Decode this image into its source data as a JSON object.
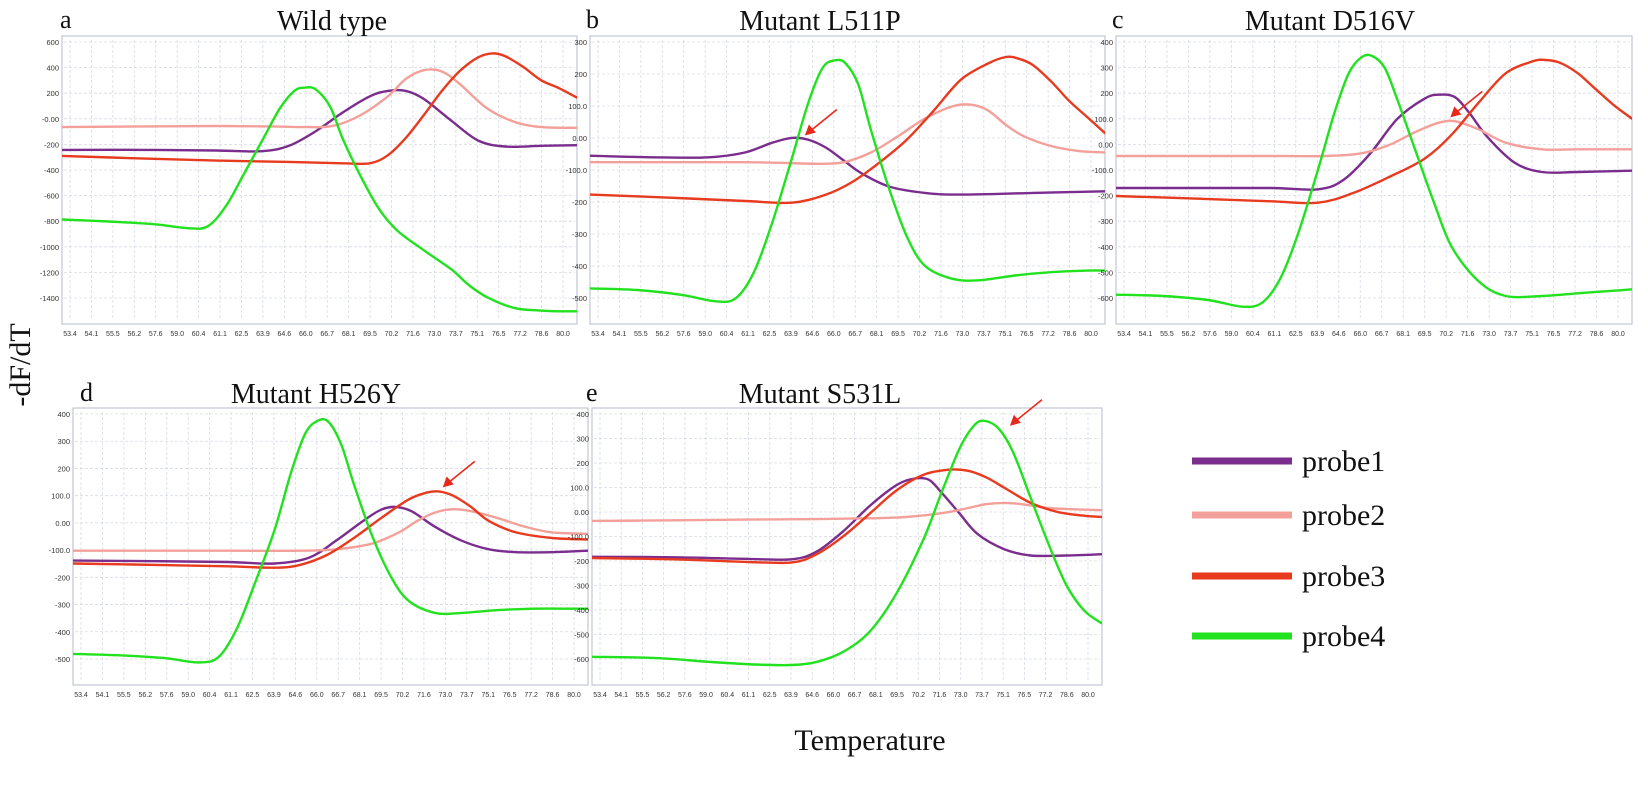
{
  "figure": {
    "y_axis_label": "-dF/dT",
    "x_axis_label": "Temperature",
    "legend": [
      {
        "name": "probe1",
        "color": "#7b2d8e"
      },
      {
        "name": "probe2",
        "color": "#f4a09a"
      },
      {
        "name": "probe3",
        "color": "#e83a1e"
      },
      {
        "name": "probe4",
        "color": "#22e11f"
      }
    ],
    "annotation_color": "#e8281a"
  },
  "chart_data": [
    {
      "type": "line",
      "panel": "a",
      "title": "Wild type",
      "x_ticks": [
        "53.4",
        "54.1",
        "55.5",
        "56.2",
        "57.6",
        "59.0",
        "60.4",
        "61.1",
        "62.5",
        "63.9",
        "64.6",
        "66.0",
        "66.7",
        "68.1",
        "69.5",
        "70.2",
        "71.6",
        "73.0",
        "73.7",
        "75.1",
        "76.5",
        "77.2",
        "78.6",
        "80.0"
      ],
      "y_ticks": [
        "600",
        "400",
        "200",
        "-0.00",
        "-200",
        "-400",
        "-600",
        "-800",
        "-1000",
        "-1200",
        "-1400"
      ],
      "ylim": [
        -1500,
        650
      ],
      "xlim": [
        53.4,
        82.0
      ],
      "arrow": null,
      "series": [
        {
          "name": "probe1",
          "x": [
            53.4,
            58,
            62,
            64.5,
            66,
            67.5,
            69,
            70.5,
            71.5,
            72.5,
            73.5,
            75,
            76.5,
            78,
            80,
            82
          ],
          "y": [
            -200,
            -200,
            -205,
            -210,
            -170,
            -60,
            80,
            200,
            240,
            240,
            180,
            20,
            -130,
            -175,
            -170,
            -165
          ]
        },
        {
          "name": "probe2",
          "x": [
            53.4,
            58,
            62,
            65,
            67,
            68.5,
            70,
            71.5,
            72.5,
            73.5,
            74.5,
            75.5,
            77,
            78.5,
            80,
            82
          ],
          "y": [
            -30,
            -25,
            -22,
            -25,
            -30,
            -20,
            60,
            200,
            330,
            395,
            385,
            290,
            110,
            10,
            -30,
            -35
          ]
        },
        {
          "name": "probe3",
          "x": [
            53.4,
            58,
            62,
            66,
            69,
            70.5,
            71.5,
            72.5,
            73.5,
            74.5,
            75.5,
            76.5,
            77.3,
            78,
            79,
            80,
            81,
            82
          ],
          "y": [
            -245,
            -265,
            -280,
            -290,
            -300,
            -300,
            -240,
            -110,
            60,
            240,
            390,
            490,
            520,
            500,
            420,
            320,
            260,
            190
          ]
        },
        {
          "name": "probe4",
          "x": [
            53.4,
            56,
            58.5,
            60.4,
            61.5,
            62.5,
            63.5,
            64.6,
            65.5,
            66.3,
            66.9,
            67.5,
            68.3,
            69,
            70,
            71,
            72,
            73.5,
            75,
            76,
            77,
            78.5,
            80,
            81,
            82
          ],
          "y": [
            -720,
            -735,
            -755,
            -785,
            -770,
            -620,
            -380,
            -110,
            110,
            240,
            265,
            250,
            120,
            -120,
            -400,
            -640,
            -800,
            -950,
            -1090,
            -1210,
            -1300,
            -1380,
            -1400,
            -1405,
            -1405
          ]
        }
      ]
    },
    {
      "type": "line",
      "panel": "b",
      "title": "Mutant L511P",
      "x_ticks": [
        "53.4",
        "54.1",
        "55.5",
        "56.2",
        "57.6",
        "59.0",
        "60.4",
        "61.1",
        "62.5",
        "63.9",
        "64.6",
        "66.0",
        "66.7",
        "68.1",
        "69.5",
        "70.2",
        "71.6",
        "73.0",
        "73.7",
        "75.1",
        "76.5",
        "77.2",
        "78.6",
        "80.0"
      ],
      "y_ticks": [
        "300",
        "200",
        "100.0",
        "0.00",
        "-100.0",
        "-200",
        "-300",
        "-400",
        "-500"
      ],
      "ylim": [
        -560,
        330
      ],
      "xlim": [
        53.4,
        82.0
      ],
      "arrow": {
        "x": 65.0,
        "y": 10
      },
      "series": [
        {
          "name": "probe1",
          "x": [
            53.4,
            57,
            60,
            62,
            63.5,
            64.6,
            65.5,
            66.5,
            67.5,
            68.5,
            70,
            72,
            74,
            78,
            82
          ],
          "y": [
            -40,
            -45,
            -45,
            -30,
            0,
            15,
            10,
            -15,
            -55,
            -95,
            -135,
            -155,
            -160,
            -155,
            -150
          ]
        },
        {
          "name": "probe2",
          "x": [
            53.4,
            58,
            62,
            64,
            66,
            67.5,
            69,
            70.5,
            72,
            73.5,
            74.5,
            75.5,
            76.5,
            77.5,
            79,
            80.5,
            82
          ],
          "y": [
            -60,
            -60,
            -60,
            -62,
            -65,
            -60,
            -30,
            20,
            75,
            112,
            118,
            100,
            55,
            20,
            -10,
            -25,
            -30
          ]
        },
        {
          "name": "probe3",
          "x": [
            53.4,
            58,
            62,
            64.6,
            66.5,
            68,
            69.5,
            71,
            72.5,
            74,
            75.5,
            76.5,
            77.2,
            78,
            79,
            80,
            81,
            82
          ],
          "y": [
            -160,
            -170,
            -180,
            -185,
            -160,
            -120,
            -60,
            10,
            100,
            195,
            245,
            265,
            260,
            240,
            190,
            130,
            80,
            30
          ]
        },
        {
          "name": "probe4",
          "x": [
            53.4,
            56,
            58.5,
            60.4,
            61.5,
            62.5,
            63.5,
            64.6,
            65.5,
            66.3,
            67,
            67.6,
            68.3,
            69,
            70,
            71,
            72,
            73.5,
            75,
            77,
            79,
            81,
            82
          ],
          "y": [
            -450,
            -455,
            -470,
            -490,
            -480,
            -400,
            -250,
            -50,
            120,
            230,
            255,
            245,
            180,
            40,
            -140,
            -290,
            -380,
            -420,
            -425,
            -410,
            -400,
            -395,
            -395
          ]
        }
      ]
    },
    {
      "type": "line",
      "panel": "c",
      "title": "Mutant D516V",
      "x_ticks": [
        "53.4",
        "54.1",
        "55.5",
        "56.2",
        "57.6",
        "59.0",
        "60.4",
        "61.1",
        "62.5",
        "63.9",
        "64.6",
        "66.0",
        "66.7",
        "68.1",
        "69.5",
        "70.2",
        "71.6",
        "73.0",
        "73.7",
        "75.1",
        "76.5",
        "77.2",
        "78.6",
        "80.0"
      ],
      "y_ticks": [
        "400",
        "300",
        "200",
        "100.0",
        "0.00",
        "-100.0",
        "-200",
        "-300",
        "-400",
        "-500",
        "-600"
      ],
      "ylim": [
        -660,
        420
      ],
      "xlim": [
        53.4,
        82.0
      ],
      "arrow": {
        "x": 71.6,
        "y": 100
      },
      "series": [
        {
          "name": "probe1",
          "x": [
            53.4,
            58,
            62,
            64.6,
            66,
            67.5,
            69,
            70.5,
            71.3,
            72.2,
            73,
            74,
            75.5,
            77,
            79,
            82
          ],
          "y": [
            -150,
            -150,
            -150,
            -155,
            -120,
            -20,
            110,
            185,
            200,
            190,
            130,
            40,
            -55,
            -90,
            -90,
            -85
          ]
        },
        {
          "name": "probe2",
          "x": [
            53.4,
            58,
            62,
            65,
            67,
            68.5,
            70,
            71.3,
            72.2,
            73.5,
            75,
            77,
            79,
            82
          ],
          "y": [
            -30,
            -30,
            -30,
            -30,
            -20,
            10,
            60,
            95,
            100,
            70,
            20,
            -5,
            -5,
            -5
          ]
        },
        {
          "name": "probe3",
          "x": [
            53.4,
            58,
            62,
            64.6,
            66.5,
            68.5,
            70.5,
            72,
            73.5,
            75,
            76.5,
            77.2,
            78,
            79,
            80,
            81,
            82
          ],
          "y": [
            -180,
            -190,
            -200,
            -205,
            -170,
            -110,
            -40,
            50,
            170,
            280,
            325,
            330,
            320,
            280,
            220,
            160,
            110
          ]
        },
        {
          "name": "probe4",
          "x": [
            53.4,
            56,
            58.5,
            60.4,
            61.5,
            62.5,
            63.5,
            64.6,
            65.5,
            66.3,
            67,
            67.6,
            68.3,
            69,
            70,
            71,
            72,
            73.5,
            75,
            77,
            79,
            81,
            82
          ],
          "y": [
            -550,
            -555,
            -570,
            -595,
            -580,
            -490,
            -320,
            -80,
            130,
            280,
            340,
            345,
            300,
            180,
            -10,
            -200,
            -370,
            -500,
            -555,
            -555,
            -545,
            -535,
            -530
          ]
        }
      ]
    },
    {
      "type": "line",
      "panel": "d",
      "title": "Mutant H526Y",
      "x_ticks": [
        "53.4",
        "54.1",
        "55.5",
        "56.2",
        "57.6",
        "59.0",
        "60.4",
        "61.1",
        "62.5",
        "63.9",
        "64.6",
        "66.0",
        "66.7",
        "68.1",
        "69.5",
        "70.2",
        "71.6",
        "73.0",
        "73.7",
        "75.1",
        "76.5",
        "77.2",
        "78.6",
        "80.0"
      ],
      "y_ticks": [
        "400",
        "300",
        "200",
        "100.0",
        "0.00",
        "-100.0",
        "-200",
        "-300",
        "-400",
        "-500"
      ],
      "ylim": [
        -530,
        450
      ],
      "xlim": [
        53.4,
        82.0
      ],
      "arrow": {
        "x": 73.6,
        "y": 155
      },
      "series": [
        {
          "name": "probe1",
          "x": [
            53.4,
            58,
            62,
            64.6,
            66.5,
            68,
            69.5,
            70.5,
            71.3,
            72.2,
            73.5,
            75,
            76.5,
            78,
            80,
            82
          ],
          "y": [
            -90,
            -92,
            -95,
            -100,
            -80,
            -20,
            50,
            90,
            100,
            85,
            30,
            -20,
            -50,
            -60,
            -60,
            -55
          ]
        },
        {
          "name": "probe2",
          "x": [
            53.4,
            58,
            62,
            66,
            68,
            70,
            71.5,
            72.5,
            73.5,
            74.5,
            75.5,
            77,
            78.5,
            80,
            82
          ],
          "y": [
            -55,
            -55,
            -55,
            -55,
            -50,
            -30,
            10,
            50,
            80,
            92,
            85,
            60,
            30,
            10,
            5
          ]
        },
        {
          "name": "probe3",
          "x": [
            53.4,
            58,
            62,
            64.6,
            66,
            67.5,
            69,
            70.5,
            72,
            73,
            73.7,
            74.5,
            75.5,
            76.5,
            78,
            80,
            82
          ],
          "y": [
            -100,
            -105,
            -110,
            -115,
            -105,
            -70,
            -10,
            60,
            125,
            150,
            155,
            140,
            100,
            50,
            10,
            -10,
            -15
          ]
        },
        {
          "name": "probe4",
          "x": [
            53.4,
            56,
            58.5,
            60.4,
            61.5,
            62.5,
            63.5,
            64.6,
            65.5,
            66.3,
            67,
            67.6,
            68.3,
            69,
            70,
            71,
            72,
            73.5,
            75,
            77,
            79,
            81,
            82
          ],
          "y": [
            -420,
            -425,
            -435,
            -450,
            -430,
            -330,
            -170,
            20,
            220,
            360,
            405,
            400,
            320,
            180,
            0,
            -140,
            -230,
            -275,
            -275,
            -265,
            -260,
            -260,
            -260
          ]
        }
      ]
    },
    {
      "type": "line",
      "panel": "e",
      "title": "Mutant S531L",
      "x_ticks": [
        "53.4",
        "54.1",
        "55.5",
        "56.2",
        "57.6",
        "59.0",
        "60.4",
        "61.1",
        "62.5",
        "63.9",
        "64.6",
        "66.0",
        "66.7",
        "68.1",
        "69.5",
        "70.2",
        "71.6",
        "73.0",
        "73.7",
        "75.1",
        "76.5",
        "77.2",
        "78.6",
        "80.0"
      ],
      "y_ticks": [
        "400",
        "300",
        "200",
        "100.0",
        "0.00",
        "-100.0",
        "-200",
        "-300",
        "-400",
        "-500",
        "-600"
      ],
      "ylim": [
        -650,
        430
      ],
      "xlim": [
        53.4,
        82.0
      ],
      "arrow": {
        "x": 76.5,
        "y": 345
      },
      "series": [
        {
          "name": "probe1",
          "x": [
            53.4,
            58,
            62,
            64.6,
            66,
            67.5,
            69,
            70.5,
            71.5,
            72.3,
            73,
            74,
            75,
            76.5,
            78,
            80,
            82
          ],
          "y": [
            -150,
            -152,
            -158,
            -160,
            -130,
            -50,
            50,
            130,
            155,
            150,
            100,
            20,
            -60,
            -120,
            -145,
            -145,
            -140
          ]
        },
        {
          "name": "probe2",
          "x": [
            53.4,
            58,
            62,
            66,
            69,
            71,
            73,
            74.5,
            75.5,
            76.5,
            77.5,
            79,
            80.5,
            82
          ],
          "y": [
            -10,
            -8,
            -5,
            -3,
            0,
            5,
            20,
            40,
            55,
            60,
            55,
            40,
            35,
            32
          ]
        },
        {
          "name": "probe3",
          "x": [
            53.4,
            58,
            62,
            64.6,
            66,
            67.5,
            69,
            70.5,
            72,
            73.5,
            74.5,
            75.5,
            76.5,
            78,
            79.5,
            81,
            82
          ],
          "y": [
            -155,
            -160,
            -170,
            -172,
            -140,
            -70,
            20,
            110,
            170,
            190,
            185,
            160,
            120,
            60,
            25,
            10,
            5
          ]
        },
        {
          "name": "probe4",
          "x": [
            53.4,
            57,
            60,
            62.5,
            64.6,
            66,
            67.5,
            69,
            70.5,
            72,
            73,
            74,
            74.8,
            75.4,
            76.2,
            77,
            78,
            79,
            80,
            81,
            82
          ],
          "y": [
            -540,
            -545,
            -560,
            -570,
            -572,
            -560,
            -520,
            -440,
            -290,
            -80,
            100,
            270,
            360,
            380,
            350,
            260,
            80,
            -100,
            -260,
            -360,
            -410
          ]
        }
      ]
    }
  ]
}
